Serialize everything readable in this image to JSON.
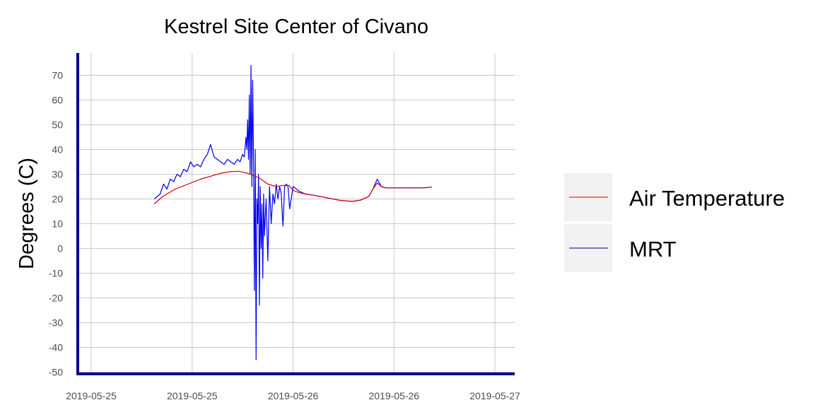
{
  "chart_data": {
    "type": "line",
    "title": "Kestrel Site Center of Civano",
    "xlabel": "",
    "ylabel": "Degrees (C)",
    "ylim": [
      -51,
      79
    ],
    "y_ticks": [
      -50,
      -40,
      -30,
      -20,
      -10,
      0,
      10,
      20,
      30,
      40,
      50,
      60,
      70
    ],
    "x_range_hours": [
      0,
      52.5
    ],
    "x_tick_hours": [
      0,
      12,
      24,
      36,
      48
    ],
    "x_tick_labels": [
      "2019-05-25",
      "2019-05-25",
      "2019-05-26",
      "2019-05-26",
      "2019-05-27"
    ],
    "grid": true,
    "legend_position": "right",
    "series": [
      {
        "name": "Air Temperature",
        "color": "#cc0000",
        "x": [
          7.5,
          8.5,
          10,
          11.5,
          13,
          14.5,
          15.5,
          16.5,
          17.5,
          18.5,
          19.3,
          20,
          21,
          22,
          22.8,
          23.5,
          24,
          24.8,
          25.5,
          26.5,
          28,
          29.5,
          31,
          32,
          33,
          33.5,
          34,
          34.5,
          35,
          36,
          37.5,
          38.5,
          39.5,
          40.5
        ],
        "y": [
          18,
          21,
          24,
          26,
          28,
          29.5,
          30.5,
          31,
          31.2,
          30.5,
          29.5,
          28.5,
          26,
          25,
          25.5,
          25.5,
          23.5,
          22.5,
          22,
          21.5,
          20.5,
          19.5,
          19,
          19.5,
          21,
          24,
          26.5,
          25,
          24.5,
          24.5,
          24.5,
          24.5,
          24.5,
          24.8
        ]
      },
      {
        "name": "MRT",
        "color": "#0000ee",
        "x": [
          7.5,
          8.2,
          8.6,
          9.0,
          9.4,
          9.8,
          10.2,
          10.6,
          11.0,
          11.4,
          11.8,
          12.2,
          12.6,
          13.0,
          13.4,
          13.8,
          14.2,
          14.6,
          15.0,
          15.4,
          15.8,
          16.2,
          16.6,
          17.0,
          17.4,
          17.7,
          18.0,
          18.2,
          18.4,
          18.5,
          18.6,
          18.7,
          18.8,
          18.9,
          19.0,
          19.1,
          19.2,
          19.3,
          19.4,
          19.5,
          19.6,
          19.7,
          19.8,
          19.9,
          20.0,
          20.1,
          20.2,
          20.3,
          20.4,
          20.5,
          20.6,
          20.8,
          21.0,
          21.2,
          21.4,
          21.6,
          21.8,
          22.0,
          22.2,
          22.4,
          22.6,
          22.8,
          23.0,
          23.2,
          23.4,
          23.6,
          24.0,
          24.8,
          25.5,
          26.5,
          28,
          29.5,
          31,
          32,
          33,
          33.5,
          34,
          34.5,
          35,
          36,
          37.5,
          38.5,
          39.5,
          40.5
        ],
        "y": [
          20,
          22,
          26,
          24,
          28,
          27,
          30,
          29,
          32,
          31,
          35,
          33,
          34,
          33,
          36,
          38,
          42,
          37,
          36,
          35,
          34,
          36,
          35,
          34,
          36,
          35,
          38,
          37,
          45,
          40,
          52,
          36,
          62,
          30,
          74,
          25,
          68,
          35,
          -17,
          40,
          -45,
          20,
          10,
          30,
          -23,
          25,
          0,
          18,
          -12,
          22,
          5,
          20,
          -5,
          25,
          10,
          22,
          18,
          26,
          20,
          25,
          22,
          9,
          25,
          26,
          25,
          16,
          25,
          23,
          22,
          21.5,
          20.5,
          19.5,
          19,
          19.5,
          21,
          24,
          28,
          25,
          24.5,
          24.5,
          24.5,
          24.5,
          24.5,
          24.8
        ]
      }
    ]
  }
}
